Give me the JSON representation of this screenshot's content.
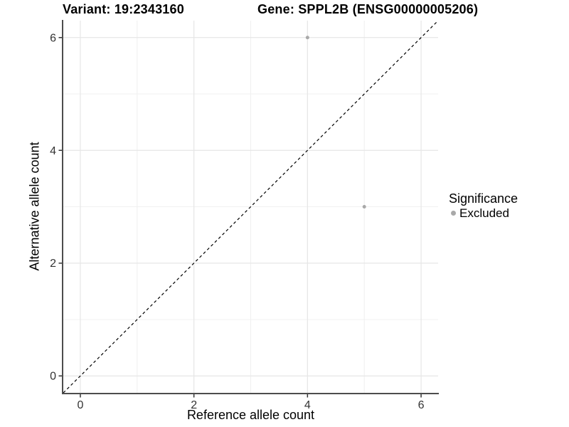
{
  "titles": {
    "left": "Variant: 19:2343160",
    "right": "Gene: SPPL2B (ENSG00000005206)"
  },
  "legend": {
    "title": "Significance",
    "items": [
      {
        "label": "Excluded",
        "color": "#a9a9a9"
      }
    ]
  },
  "colors": {
    "background": "#ffffff",
    "axis_line": "#4d4d4d",
    "tick_mark": "#333333",
    "tick_label": "#333333",
    "grid_major": "#e6e6e6",
    "grid_minor": "#f0f0f0",
    "point": "#a9a9a9",
    "identity_line": "#000000"
  },
  "chart_data": {
    "type": "scatter",
    "title": "Variant: 19:2343160   Gene: SPPL2B (ENSG00000005206)",
    "xlabel": "Reference allele count",
    "ylabel": "Alternative allele count",
    "xlim": [
      -0.3,
      6.3
    ],
    "ylim": [
      -0.3,
      6.3
    ],
    "x_ticks": [
      0,
      2,
      4,
      6
    ],
    "y_ticks": [
      0,
      2,
      4,
      6
    ],
    "x_minor_ticks": [
      1,
      3,
      5
    ],
    "y_minor_ticks": [
      1,
      3,
      5
    ],
    "grid": true,
    "legend_position": "right",
    "series": [
      {
        "name": "Excluded",
        "color": "#a9a9a9",
        "points": [
          {
            "x": 4,
            "y": 6
          },
          {
            "x": 5,
            "y": 3
          }
        ]
      }
    ],
    "reference_line": {
      "type": "identity",
      "slope": 1,
      "intercept": 0,
      "style": "dashed",
      "color": "#000000"
    }
  }
}
